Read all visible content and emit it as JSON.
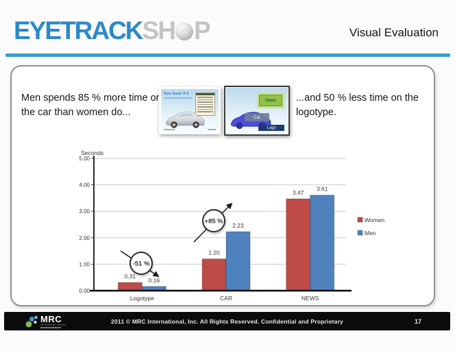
{
  "theme": {
    "accent_blue": "#3A9CCB",
    "logo_blue": "#2C89C8",
    "logo_gray": "#C4C4C4",
    "footer_bg": "#0B0B0B"
  },
  "header": {
    "logo": {
      "primary": "EYETRACK",
      "secondary_prefix": "SH",
      "secondary_suffix": "P"
    },
    "title": "Visual Evaluation"
  },
  "content": {
    "left_text": "Men spends 85 % more time on the car than women do...",
    "right_text": "...and 50 % less time on the logotype.",
    "thumbnail_original": {
      "title": "Nya Saab 9-5"
    },
    "thumbnail_annotated": {
      "car_label": "Car",
      "news_label": "News",
      "logo_label": "Logo"
    }
  },
  "chart_data": {
    "type": "bar",
    "title": "",
    "ylabel": "Seconds",
    "xlabel": "",
    "categories": [
      "Logotype",
      "CAR",
      "NEWS"
    ],
    "series": [
      {
        "name": "Women",
        "color": "#BE4B48",
        "values": [
          0.31,
          1.2,
          3.47
        ]
      },
      {
        "name": "Men",
        "color": "#4F81BD",
        "values": [
          0.16,
          2.23,
          3.61
        ]
      }
    ],
    "ylim": [
      0,
      5
    ],
    "ytick_step": 1,
    "grid": true,
    "legend_position": "right",
    "annotations": [
      {
        "category": "Logotype",
        "label": "-51 %",
        "direction": "down"
      },
      {
        "category": "CAR",
        "label": "+85 %",
        "direction": "up"
      }
    ]
  },
  "footer": {
    "logo_text": "MRC",
    "logo_subtext": "INTERNATIONAL",
    "copyright": "2011 © MRC International, Inc. All Rights Reserved. Confidential and Proprietary",
    "page_number": "17"
  }
}
